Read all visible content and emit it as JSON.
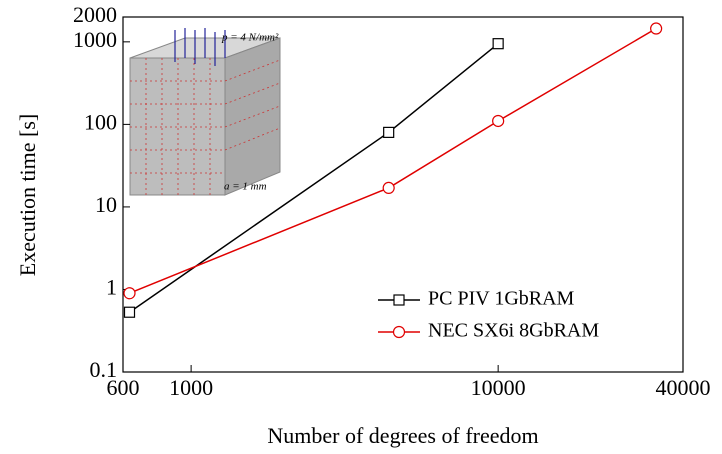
{
  "chart_data": {
    "type": "line",
    "x_label": "Number of degrees of freedom",
    "y_label": "Execution time [s]",
    "annotations": [
      "p = 4 N/mm²",
      "a = 1 mm"
    ],
    "log_x": true,
    "log_y": true,
    "xlim": [
      600,
      40000
    ],
    "xticks": [
      600,
      1000,
      10000,
      40000
    ],
    "ylim": [
      0.1,
      2000
    ],
    "yticks": [
      0.1,
      1,
      10,
      100,
      1000,
      2000
    ],
    "legend": "lower right",
    "series": [
      {
        "name": "PC PIV 1GbRAM",
        "color": "#000000",
        "marker": "square",
        "x": [
          630,
          4400,
          10000
        ],
        "values": [
          0.53,
          80,
          950
        ]
      },
      {
        "name": "NEC SX6i 8GbRAM",
        "color": "#e00000",
        "marker": "circle",
        "x": [
          630,
          4400,
          10000,
          32700
        ],
        "values": [
          0.9,
          17,
          110,
          1450
        ]
      }
    ]
  }
}
